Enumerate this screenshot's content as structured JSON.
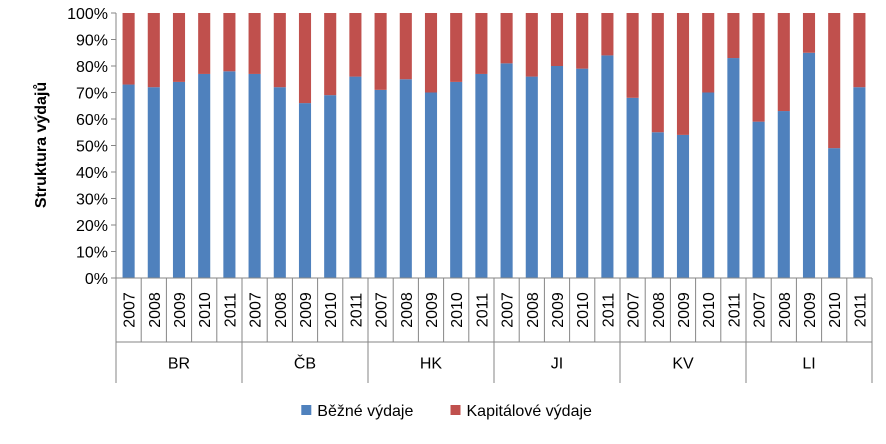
{
  "chart_data": {
    "type": "bar",
    "stacked": true,
    "percent_stacked": true,
    "ylabel": "Struktura výdajů",
    "ylim": [
      0,
      100
    ],
    "y_ticks": [
      "0%",
      "10%",
      "20%",
      "30%",
      "40%",
      "50%",
      "60%",
      "70%",
      "80%",
      "90%",
      "100%"
    ],
    "groups": [
      {
        "label": "BR",
        "years": [
          "2007",
          "2008",
          "2009",
          "2010",
          "2011"
        ]
      },
      {
        "label": "ČB",
        "years": [
          "2007",
          "2008",
          "2009",
          "2010",
          "2011"
        ]
      },
      {
        "label": "HK",
        "years": [
          "2007",
          "2008",
          "2009",
          "2010",
          "2011"
        ]
      },
      {
        "label": "JI",
        "years": [
          "2007",
          "2008",
          "2009",
          "2010",
          "2011"
        ]
      },
      {
        "label": "KV",
        "years": [
          "2007",
          "2008",
          "2009",
          "2010",
          "2011"
        ]
      },
      {
        "label": "LI",
        "years": [
          "2007",
          "2008",
          "2009",
          "2010",
          "2011"
        ]
      }
    ],
    "series": [
      {
        "name": "Běžné výdaje",
        "color": "#4f81bd",
        "values": [
          73,
          72,
          74,
          77,
          78,
          77,
          72,
          66,
          69,
          76,
          71,
          75,
          70,
          74,
          77,
          81,
          76,
          80,
          79,
          84,
          68,
          55,
          54,
          70,
          83,
          59,
          63,
          85,
          49,
          72
        ]
      },
      {
        "name": "Kapitálové výdaje",
        "color": "#c0504d",
        "values": [
          27,
          28,
          26,
          23,
          22,
          23,
          28,
          34,
          31,
          24,
          29,
          25,
          30,
          26,
          23,
          19,
          24,
          20,
          21,
          16,
          32,
          45,
          46,
          30,
          17,
          41,
          37,
          15,
          51,
          28
        ]
      }
    ],
    "legend_position": "bottom",
    "grid": false
  }
}
